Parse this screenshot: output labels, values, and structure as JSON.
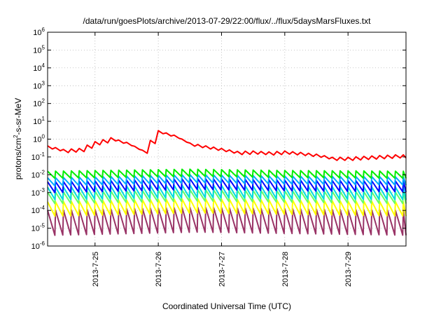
{
  "chart_data": {
    "type": "line",
    "title": "/data/run/goesPlots/archive/2013-07-29/22:00/flux/../flux/5daysMarsFluxes.txt",
    "xlabel": "Coordinated Universal Time (UTC)",
    "ylabel": {
      "pre": "protons/cm",
      "sup": "2",
      "post": "-s-sr-MeV"
    },
    "yscale": "log",
    "ylim": [
      1e-06,
      1000000.0
    ],
    "y_ticks": [
      {
        "base": "10",
        "exp": "-6",
        "value": 1e-06
      },
      {
        "base": "10",
        "exp": "-5",
        "value": 1e-05
      },
      {
        "base": "10",
        "exp": "-4",
        "value": 0.0001
      },
      {
        "base": "10",
        "exp": "-3",
        "value": 0.001
      },
      {
        "base": "10",
        "exp": "-2",
        "value": 0.01
      },
      {
        "base": "10",
        "exp": "-1",
        "value": 0.1
      },
      {
        "base": "10",
        "exp": "0",
        "value": 1
      },
      {
        "base": "10",
        "exp": "1",
        "value": 10
      },
      {
        "base": "10",
        "exp": "2",
        "value": 100
      },
      {
        "base": "10",
        "exp": "3",
        "value": 1000
      },
      {
        "base": "10",
        "exp": "4",
        "value": 10000
      },
      {
        "base": "10",
        "exp": "5",
        "value": 100000
      },
      {
        "base": "10",
        "exp": "6",
        "value": 1000000
      }
    ],
    "xlim": [
      "2013-07-24 06:00",
      "2013-07-29 22:00"
    ],
    "x_ticks": [
      "2013-7-25",
      "2013-7-26",
      "2013-7-27",
      "2013-7-28",
      "2013-7-29"
    ],
    "grid": true,
    "sawtooth_period_hours": 3,
    "series": [
      {
        "color": "#ff0000",
        "points": [
          [
            "2013-07-24 06:00",
            0.35
          ],
          [
            "2013-07-24 12:00",
            0.22
          ],
          [
            "2013-07-24 18:00",
            0.25
          ],
          [
            "2013-07-25 00:00",
            0.6
          ],
          [
            "2013-07-25 06:00",
            1.0
          ],
          [
            "2013-07-25 12:00",
            0.55
          ],
          [
            "2013-07-25 18:00",
            0.2
          ],
          [
            "2013-07-26 00:00",
            2.5
          ],
          [
            "2013-07-26 06:00",
            1.4
          ],
          [
            "2013-07-26 12:00",
            0.5
          ],
          [
            "2013-07-26 18:00",
            0.35
          ],
          [
            "2013-07-27 00:00",
            0.25
          ],
          [
            "2013-07-27 06:00",
            0.17
          ],
          [
            "2013-07-27 12:00",
            0.18
          ],
          [
            "2013-07-27 18:00",
            0.16
          ],
          [
            "2013-07-28 00:00",
            0.18
          ],
          [
            "2013-07-28 06:00",
            0.15
          ],
          [
            "2013-07-28 12:00",
            0.12
          ],
          [
            "2013-07-28 18:00",
            0.08
          ],
          [
            "2013-07-29 00:00",
            0.08
          ],
          [
            "2013-07-29 06:00",
            0.09
          ],
          [
            "2013-07-29 12:00",
            0.1
          ],
          [
            "2013-07-29 18:00",
            0.11
          ],
          [
            "2013-07-29 22:00",
            0.11
          ]
        ],
        "ripple": 0.4
      },
      {
        "color": "#00ee00",
        "points": [
          [
            "2013-07-24 06:00",
            0.01
          ],
          [
            "2013-07-26 12:00",
            0.013
          ],
          [
            "2013-07-28 00:00",
            0.011
          ],
          [
            "2013-07-29 22:00",
            0.01
          ]
        ],
        "sawtooth": [
          0.008,
          0.02
        ]
      },
      {
        "color": "#00aaff",
        "points": [
          [
            "2013-07-24 06:00",
            0.004
          ],
          [
            "2013-07-26 12:00",
            0.006
          ],
          [
            "2013-07-28 00:00",
            0.005
          ],
          [
            "2013-07-29 22:00",
            0.0045
          ]
        ],
        "sawtooth": [
          0.0035,
          0.01
        ]
      },
      {
        "color": "#0000ff",
        "points": [
          [
            "2013-07-24 06:00",
            0.002
          ],
          [
            "2013-07-26 12:00",
            0.003
          ],
          [
            "2013-07-28 00:00",
            0.0025
          ],
          [
            "2013-07-29 22:00",
            0.0022
          ]
        ],
        "sawtooth": [
          0.0015,
          0.006
        ]
      },
      {
        "color": "#00dddd",
        "points": [
          [
            "2013-07-24 06:00",
            0.0009
          ],
          [
            "2013-07-26 12:00",
            0.0012
          ],
          [
            "2013-07-28 00:00",
            0.001
          ],
          [
            "2013-07-29 22:00",
            0.0009
          ]
        ],
        "sawtooth": [
          0.0006,
          0.003
        ]
      },
      {
        "color": "#66ff66",
        "points": [
          [
            "2013-07-24 06:00",
            0.0005
          ],
          [
            "2013-07-26 12:00",
            0.0007
          ],
          [
            "2013-07-28 00:00",
            0.0006
          ],
          [
            "2013-07-29 22:00",
            0.0005
          ]
        ],
        "sawtooth": [
          0.00035,
          0.0015
        ]
      },
      {
        "color": "#ffff00",
        "points": [
          [
            "2013-07-24 06:00",
            0.00012
          ],
          [
            "2013-07-26 12:00",
            0.00018
          ],
          [
            "2013-07-28 00:00",
            0.00015
          ],
          [
            "2013-07-29 22:00",
            0.00012
          ]
        ],
        "sawtooth": [
          8e-05,
          0.0005
        ]
      },
      {
        "color": "#993366",
        "points": [
          [
            "2013-07-24 06:00",
            2e-05
          ],
          [
            "2013-07-26 12:00",
            3e-05
          ],
          [
            "2013-07-28 00:00",
            2.5e-05
          ],
          [
            "2013-07-29 22:00",
            2e-05
          ]
        ],
        "sawtooth": [
          8e-06,
          0.0002
        ]
      }
    ]
  }
}
